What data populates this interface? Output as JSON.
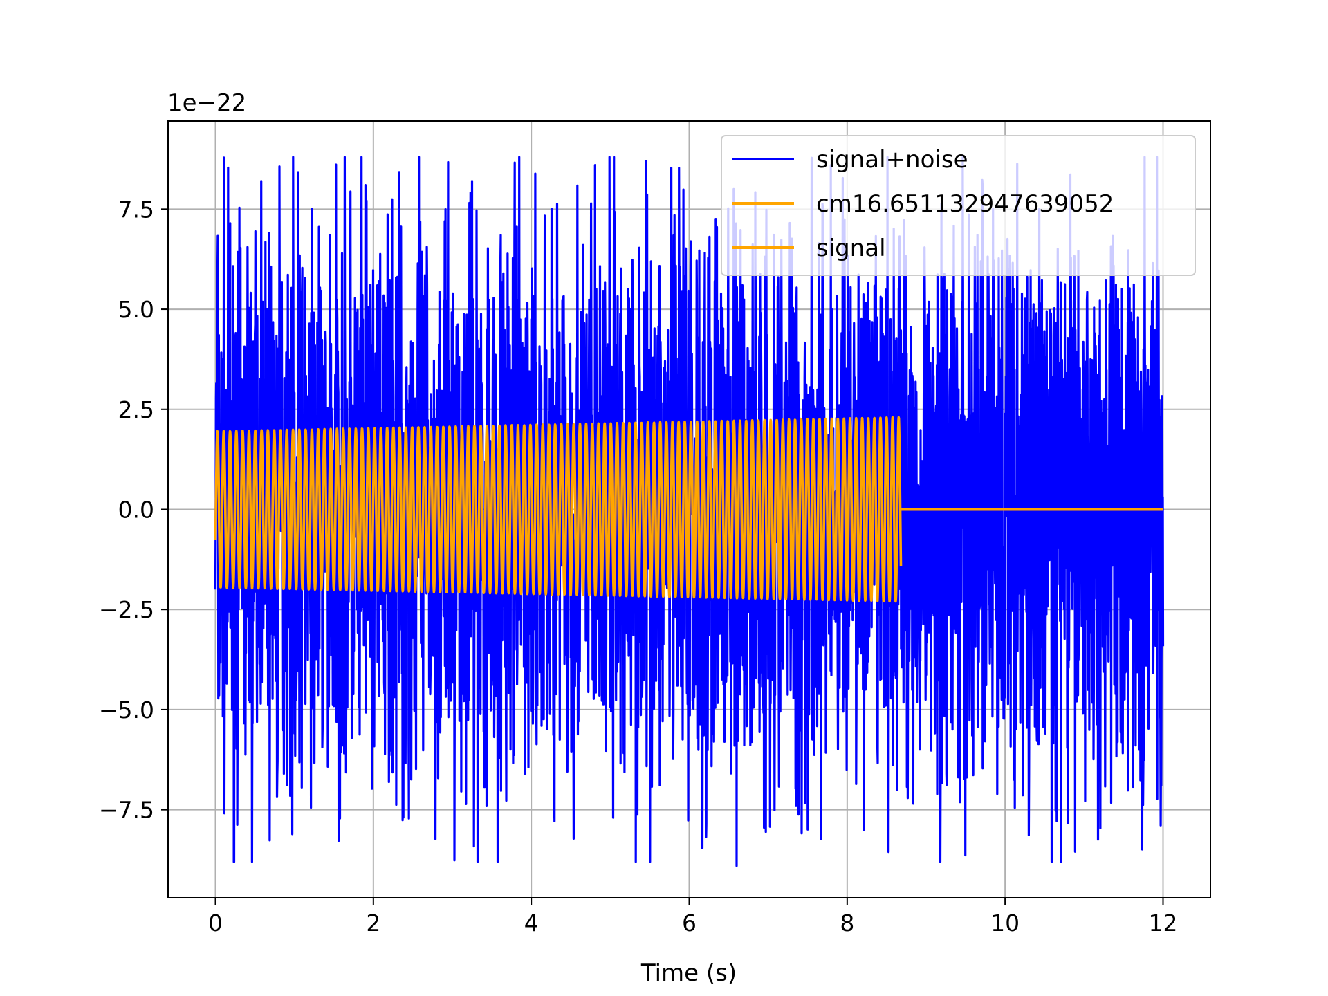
{
  "chart_data": {
    "type": "line",
    "title": "",
    "xlabel": "Time (s)",
    "ylabel": "",
    "y_scale_label": "1e−22",
    "xlim": [
      -0.6,
      12.6
    ],
    "ylim": [
      -9.7,
      9.7
    ],
    "x_ticks": [
      0,
      2,
      4,
      6,
      8,
      10,
      12
    ],
    "x_tick_labels": [
      "0",
      "2",
      "4",
      "6",
      "8",
      "10",
      "12"
    ],
    "y_ticks": [
      -7.5,
      -5.0,
      -2.5,
      0.0,
      2.5,
      5.0,
      7.5
    ],
    "y_tick_labels": [
      "−7.5",
      "−5.0",
      "−2.5",
      "0.0",
      "2.5",
      "5.0",
      "7.5"
    ],
    "grid": true,
    "legend_position": "top-right",
    "series": [
      {
        "name": "signal+noise",
        "color": "#0000ff",
        "x_range": [
          0,
          12
        ],
        "approx_amplitude": 8.8,
        "approx_std": 3.0,
        "peaks": [
          {
            "x": 0.58,
            "y": 8.2
          },
          {
            "x": 1.9,
            "y": 8.1
          },
          {
            "x": 3.25,
            "y": 8.2
          },
          {
            "x": 5.45,
            "y": 8.7
          },
          {
            "x": 3.32,
            "y": -8.8
          },
          {
            "x": 6.6,
            "y": -8.9
          }
        ]
      },
      {
        "name": "cm16.651132947639052",
        "color": "#ffa500",
        "x_range": [
          0,
          8.68
        ],
        "start_amplitude": 1.95,
        "end_amplitude": 2.3,
        "cycles_per_second": 12.5
      },
      {
        "name": "signal",
        "color": "#ffa500",
        "x_range": [
          8.68,
          12
        ],
        "value": 0.0
      }
    ]
  }
}
